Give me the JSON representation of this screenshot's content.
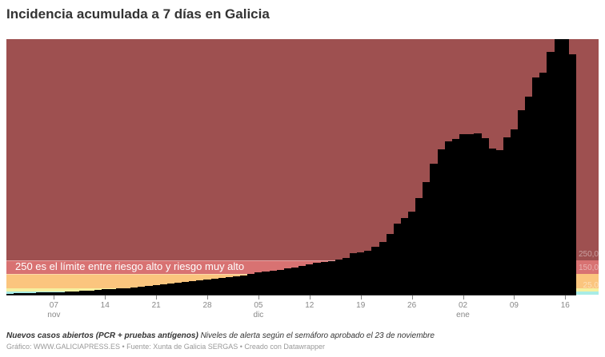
{
  "title": "Incidencia acumulada a 7 días en Galicia",
  "annotation": "250 es el límite entre riesgo alto y riesgo muy alto",
  "notes_bold": "Nuevos casos abiertos (PCR + pruebas antígenos)",
  "notes_text": " Niveles de alerta según el semáforo aprobado el 23 de noviembre",
  "credits": "Gráfico: WWW.GALICIAPRESS.ES • Fuente: Xunta de Galicia SERGAS • Creado con Datawrapper",
  "colors": {
    "bar": "#000000",
    "very_high": "#9e5050",
    "high": "#d87272",
    "medium": "#fbc57e",
    "low": "#f5f0a0",
    "new_normal": "#a8ece6"
  },
  "band_labels": [
    "250,0",
    "150,0",
    "25,0"
  ],
  "chart_data": {
    "type": "bar",
    "title": "Incidencia acumulada a 7 días en Galicia",
    "xlabel": "",
    "ylabel": "",
    "ylim": [
      0,
      1860
    ],
    "grid": false,
    "x_start": "2020-11-01",
    "x_end": "2021-01-17",
    "tick_labels": [
      {
        "label": "07",
        "sub": "nov"
      },
      {
        "label": "14",
        "sub": ""
      },
      {
        "label": "21",
        "sub": ""
      },
      {
        "label": "28",
        "sub": ""
      },
      {
        "label": "05",
        "sub": "dic"
      },
      {
        "label": "12",
        "sub": ""
      },
      {
        "label": "19",
        "sub": ""
      },
      {
        "label": "26",
        "sub": ""
      },
      {
        "label": "02",
        "sub": "ene"
      },
      {
        "label": "09",
        "sub": ""
      },
      {
        "label": "16",
        "sub": ""
      }
    ],
    "bands": [
      {
        "from": 0,
        "to": 25,
        "color": "#a8ece6"
      },
      {
        "from": 25,
        "to": 50,
        "color": "#f5f0a0"
      },
      {
        "from": 50,
        "to": 150,
        "color": "#fbc57e"
      },
      {
        "from": 150,
        "to": 250,
        "color": "#d87272"
      },
      {
        "from": 250,
        "to": 1860,
        "color": "#9e5050"
      }
    ],
    "values": [
      6,
      9,
      12,
      12,
      15,
      17,
      17,
      20,
      23,
      26,
      29,
      32,
      35,
      38,
      41,
      44,
      46,
      52,
      58,
      64,
      70,
      76,
      81,
      87,
      93,
      99,
      105,
      110,
      116,
      122,
      128,
      134,
      142,
      151,
      160,
      168,
      174,
      180,
      192,
      198,
      209,
      221,
      232,
      238,
      244,
      256,
      267,
      304,
      310,
      321,
      346,
      383,
      443,
      517,
      560,
      603,
      701,
      819,
      951,
      1059,
      1117,
      1131,
      1166,
      1166,
      1175,
      1137,
      1065,
      1053,
      1145,
      1204,
      1342,
      1441,
      1580,
      1615,
      1766,
      1860,
      1860,
      1749
    ],
    "annotations": [
      "250 es el límite entre riesgo alto y riesgo muy alto"
    ]
  }
}
